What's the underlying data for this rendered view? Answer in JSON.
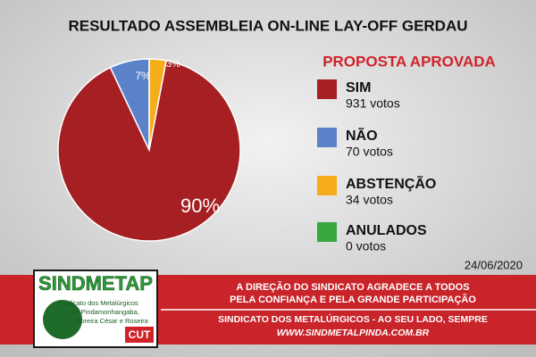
{
  "chart_data": {
    "type": "pie",
    "title": "RESULTADO ASSEMBLEIA ON-LINE LAY-OFF GERDAU",
    "subtitle": "PROPOSTA APROVADA",
    "categories": [
      "SIM",
      "NÃO",
      "ABSTENÇÃO",
      "ANULADOS"
    ],
    "values": [
      90,
      7,
      3,
      0
    ],
    "value_labels": [
      "90%",
      "7%",
      "3%",
      null
    ],
    "colors": [
      "#a51f23",
      "#5b82c8",
      "#f6ad1b",
      "#3aa63f"
    ],
    "vote_labels": [
      "931 votos",
      "70 votos",
      "34 votos",
      "0 votos"
    ],
    "date": "24/06/2020"
  },
  "footer": {
    "lines": [
      "A DIREÇÃO DO SINDICATO AGRADECE A TODOS",
      "PELA CONFIANÇA E PELA GRANDE PARTICIPAÇÃO",
      "SINDICATO DOS METALÚRGICOS - AO SEU LADO, SEMPRE",
      "WWW.SINDMETALPINDA.COM.BR"
    ],
    "logo": {
      "name": "SINDMETAP",
      "lines": [
        "Sindicato dos Metalúrgicos",
        "de Pindamonhangaba,",
        "Moreira César e Roseira"
      ],
      "badge": "CUT"
    }
  }
}
